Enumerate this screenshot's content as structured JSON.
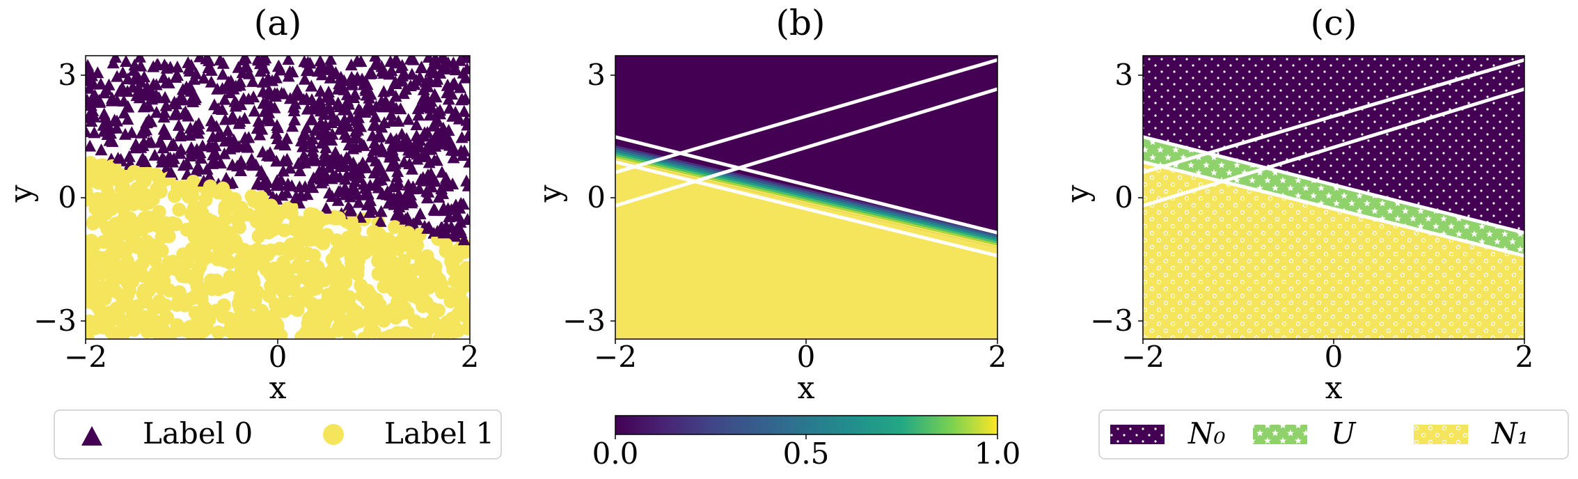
{
  "colors": {
    "label0": "#440154",
    "label1": "#f5e55c",
    "unknown": "#8fd16a",
    "boundary": "#ffffff",
    "frame": "#000000",
    "colormap": "viridis"
  },
  "chart_data": [
    {
      "panel": "(a)",
      "type": "scatter",
      "title": "(a)",
      "xlabel": "x",
      "ylabel": "y",
      "xlim": [
        -2,
        2
      ],
      "ylim": [
        -3.4,
        3.4
      ],
      "xticks": [
        -2,
        0,
        2
      ],
      "xticklabels": [
        "−2",
        "0",
        "2"
      ],
      "yticks": [
        -3,
        0,
        3
      ],
      "yticklabels": [
        "−3",
        "0",
        "3"
      ],
      "grid": false,
      "true_boundary": {
        "y_at_x_neg2": 1.0,
        "y_at_x_2": -1.1
      },
      "series": [
        {
          "name": "Label 0",
          "marker": "triangle",
          "color": "#440154",
          "region": "above boundary",
          "count_approx": 900
        },
        {
          "name": "Label 1",
          "marker": "circle",
          "color": "#f5e55c",
          "region": "below boundary",
          "count_approx": 900
        }
      ],
      "legend": {
        "placement": "below",
        "entries": [
          {
            "label": "Label 0",
            "marker": "triangle",
            "color": "#440154"
          },
          {
            "label": "Label 1",
            "marker": "circle",
            "color": "#f5e55c"
          }
        ]
      }
    },
    {
      "panel": "(b)",
      "type": "heatmap",
      "title": "(b)",
      "xlabel": "x",
      "ylabel": "y",
      "xlim": [
        -2,
        2
      ],
      "ylim": [
        -3.4,
        3.4
      ],
      "xticks": [
        -2,
        0,
        2
      ],
      "xticklabels": [
        "−2",
        "0",
        "2"
      ],
      "yticks": [
        -3,
        0,
        3
      ],
      "yticklabels": [
        "−3",
        "0",
        "3"
      ],
      "grid": false,
      "transition_band": {
        "upper_line": [
          1.3,
          -0.8
        ],
        "lower_line": [
          0.9,
          -1.2
        ]
      },
      "lines": [
        {
          "y_at_x_neg2": 1.45,
          "y_at_x_2": -0.85
        },
        {
          "y_at_x_neg2": 0.85,
          "y_at_x_2": -1.4
        },
        {
          "y_at_x_neg2": 0.6,
          "y_at_x_2": 3.3
        },
        {
          "y_at_x_neg2": -0.2,
          "y_at_x_2": 2.6
        }
      ],
      "colorbar": {
        "placement": "below",
        "min": 0.0,
        "max": 1.0,
        "ticks": [
          0.0,
          0.5,
          1.0
        ],
        "ticklabels": [
          "0.0",
          "0.5",
          "1.0"
        ]
      }
    },
    {
      "panel": "(c)",
      "type": "area",
      "title": "(c)",
      "xlabel": "x",
      "ylabel": "y",
      "xlim": [
        -2,
        2
      ],
      "ylim": [
        -3.4,
        3.4
      ],
      "xticks": [
        -2,
        0,
        2
      ],
      "xticklabels": [
        "−2",
        "0",
        "2"
      ],
      "yticks": [
        -3,
        0,
        3
      ],
      "yticklabels": [
        "−3",
        "0",
        "3"
      ],
      "grid": false,
      "lines": [
        {
          "y_at_x_neg2": 1.45,
          "y_at_x_2": -0.85
        },
        {
          "y_at_x_neg2": 0.85,
          "y_at_x_2": -1.4
        },
        {
          "y_at_x_neg2": 0.6,
          "y_at_x_2": 3.3
        },
        {
          "y_at_x_neg2": -0.2,
          "y_at_x_2": 2.6
        }
      ],
      "regions": [
        {
          "name": "N0",
          "color": "#440154",
          "hatch": "dots",
          "between": "top edge and upper line"
        },
        {
          "name": "U",
          "color": "#8fd16a",
          "hatch": "stars",
          "between": "upper line and lower line"
        },
        {
          "name": "N1",
          "color": "#f5e55c",
          "hatch": "circles",
          "between": "lower line and bottom edge"
        }
      ],
      "legend": {
        "placement": "below",
        "entries": [
          {
            "label": "N₀",
            "color": "#440154",
            "hatch": "dots"
          },
          {
            "label": "U",
            "color": "#8fd16a",
            "hatch": "stars"
          },
          {
            "label": "N₁",
            "color": "#f5e55c",
            "hatch": "circles"
          }
        ]
      }
    }
  ]
}
